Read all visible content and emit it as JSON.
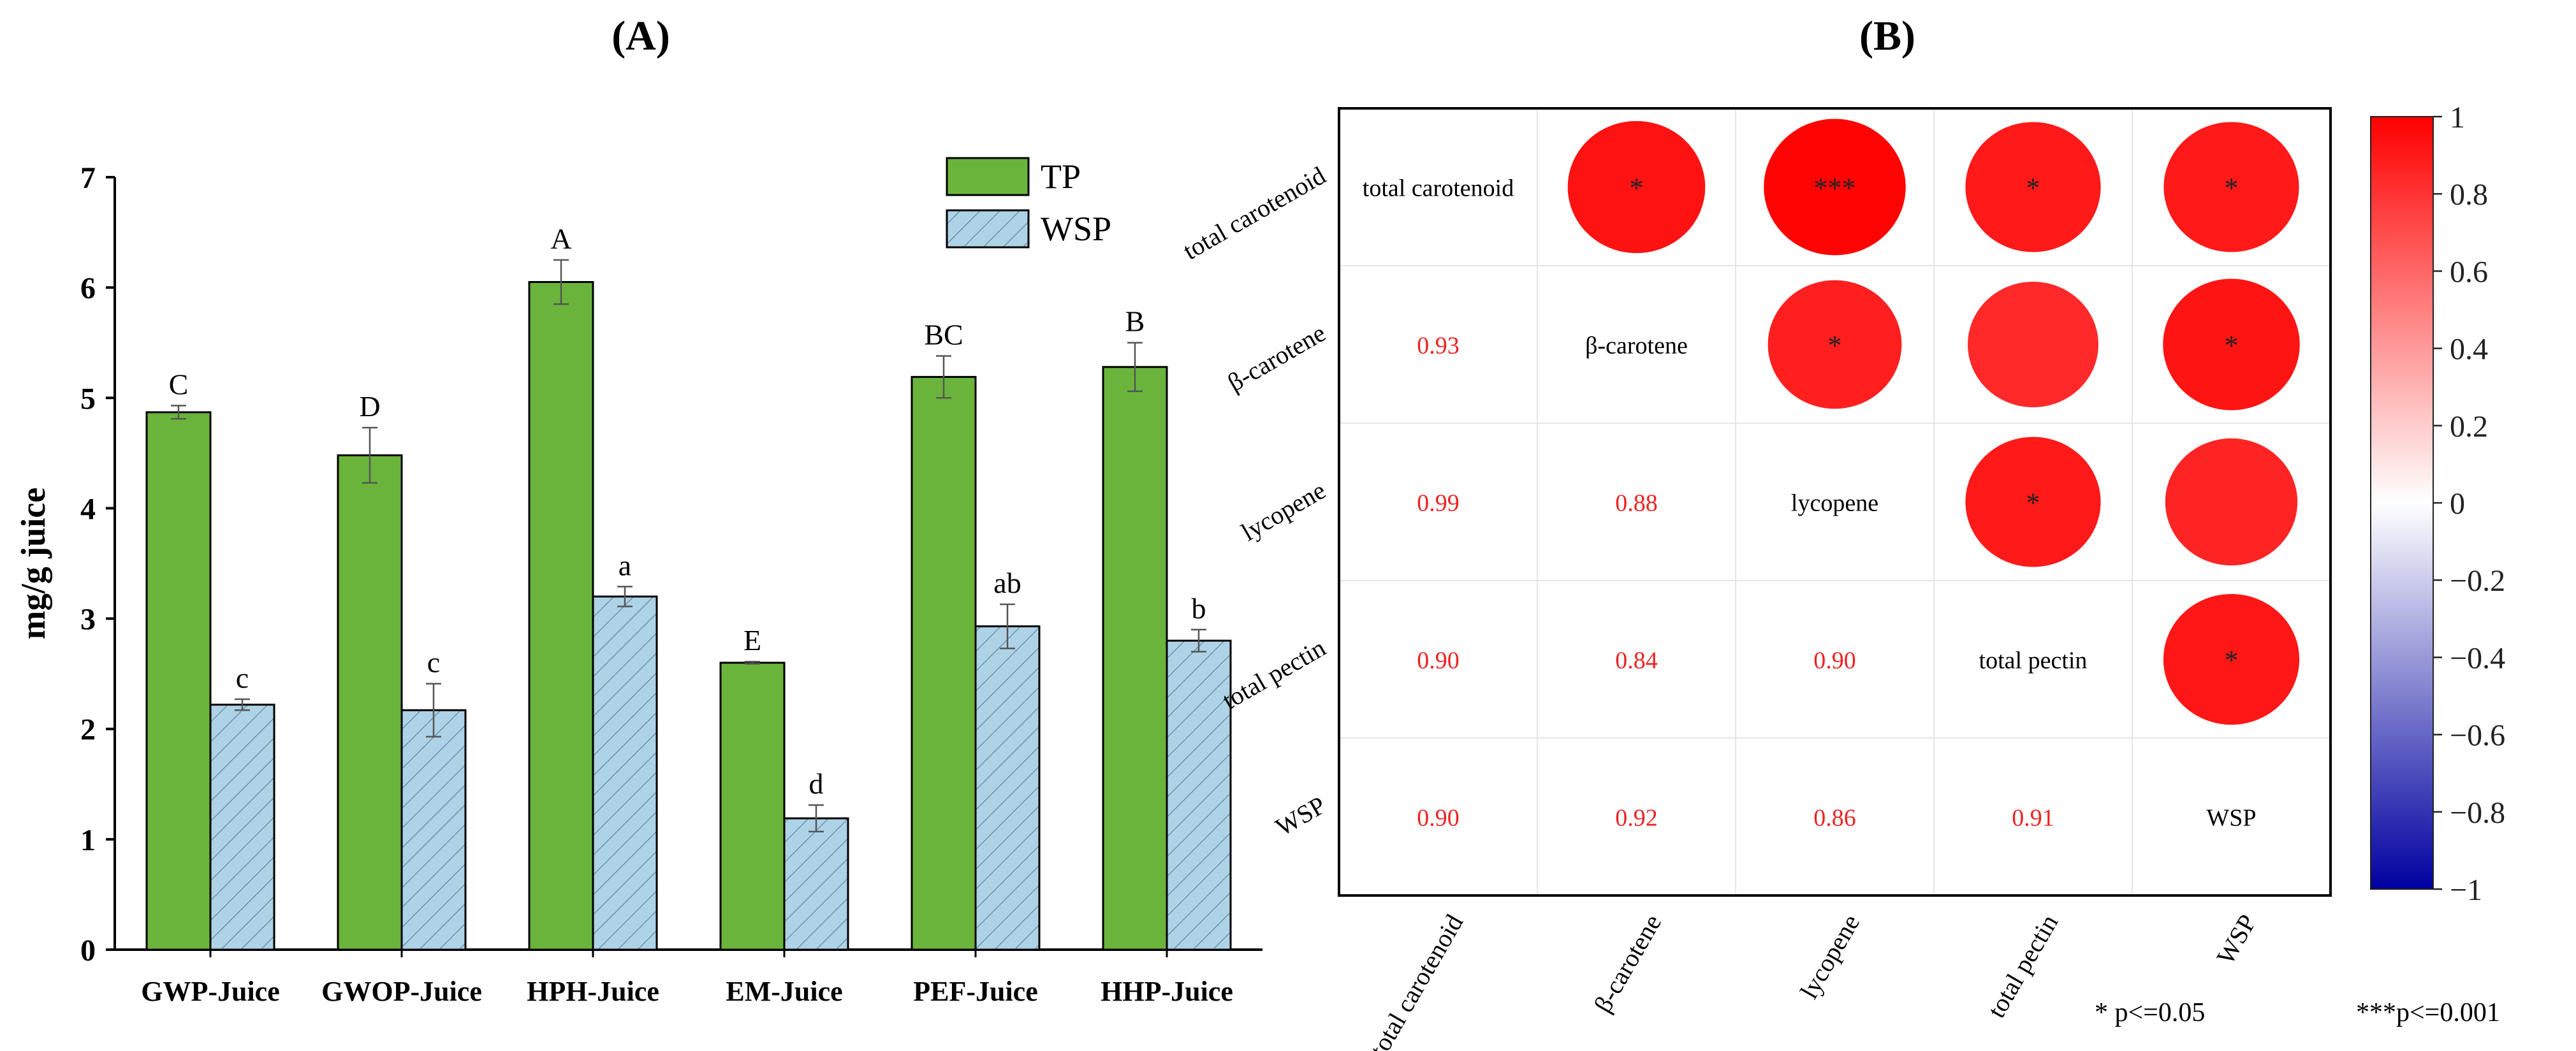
{
  "panel_a": {
    "label": "(A)",
    "legend": [
      {
        "name": "TP",
        "color": "#6ab43c"
      },
      {
        "name": "WSP",
        "color": "#aed2e6"
      }
    ]
  },
  "panel_b": {
    "label": "(B)",
    "colorbar_ticks": [
      "1",
      "0.8",
      "0.6",
      "0.4",
      "0.2",
      "0",
      "−0.2",
      "−0.4",
      "−0.6",
      "−0.8",
      "−1"
    ],
    "footnotes": [
      "* p<=0.05",
      "***p<=0.001"
    ]
  },
  "chart_data": [
    {
      "type": "bar",
      "title": "(A)",
      "categories": [
        "GWP-Juice",
        "GWOP-Juice",
        "HPH-Juice",
        "EM-Juice",
        "PEF-Juice",
        "HHP-Juice"
      ],
      "series": [
        {
          "name": "TP",
          "values": [
            4.87,
            4.48,
            6.05,
            2.6,
            5.19,
            5.28
          ],
          "errors": [
            0.06,
            0.25,
            0.2,
            0.01,
            0.19,
            0.22
          ],
          "letters": [
            "C",
            "D",
            "A",
            "E",
            "BC",
            "B"
          ],
          "color": "#6ab43c"
        },
        {
          "name": "WSP",
          "values": [
            2.22,
            2.17,
            3.2,
            1.19,
            2.93,
            2.8
          ],
          "errors": [
            0.05,
            0.24,
            0.09,
            0.12,
            0.2,
            0.1
          ],
          "letters": [
            "c",
            "c",
            "a",
            "d",
            "ab",
            "b"
          ],
          "color": "#aed2e6"
        }
      ],
      "xlabel": "",
      "ylabel": "mg/g juice",
      "ylim": [
        0,
        7
      ],
      "yticks": [
        0,
        1,
        2,
        3,
        4,
        5,
        6,
        7
      ]
    },
    {
      "type": "heatmap",
      "title": "(B)",
      "variables": [
        "total carotenoid",
        "β-carotene",
        "lycopene",
        "total pectin",
        "WSP"
      ],
      "lower": [
        [
          null,
          null,
          null,
          null,
          null
        ],
        [
          "0.93",
          null,
          null,
          null,
          null
        ],
        [
          "0.99",
          "0.88",
          null,
          null,
          null
        ],
        [
          "0.90",
          "0.84",
          "0.90",
          null,
          null
        ],
        [
          "0.90",
          "0.92",
          "0.86",
          "0.91",
          null
        ]
      ],
      "upper_values": [
        [
          null,
          0.93,
          0.99,
          0.9,
          0.9
        ],
        [
          null,
          null,
          0.88,
          0.84,
          0.92
        ],
        [
          null,
          null,
          null,
          0.9,
          0.86
        ],
        [
          null,
          null,
          null,
          null,
          0.91
        ],
        [
          null,
          null,
          null,
          null,
          null
        ]
      ],
      "upper_sig": [
        [
          null,
          "*",
          "***",
          "*",
          "*"
        ],
        [
          null,
          null,
          "*",
          "",
          "*"
        ],
        [
          null,
          null,
          null,
          "*",
          ""
        ],
        [
          null,
          null,
          null,
          null,
          "*"
        ],
        [
          null,
          null,
          null,
          null,
          null
        ]
      ],
      "colorbar_range": [
        -1,
        1
      ]
    }
  ]
}
